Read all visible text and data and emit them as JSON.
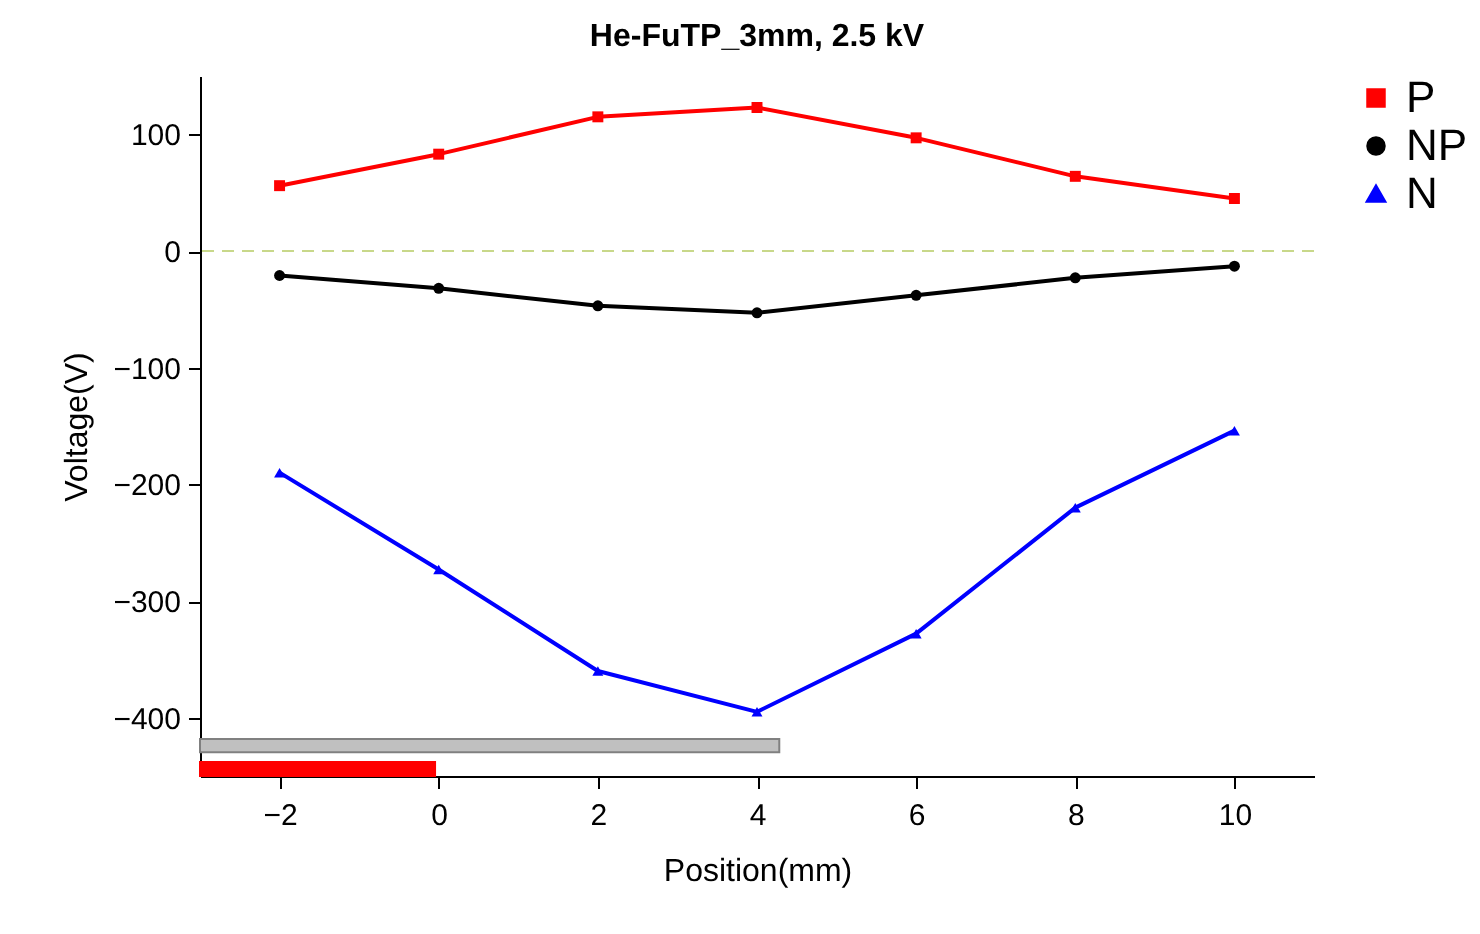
{
  "chart_data": {
    "type": "line",
    "title": "He-FuTP_3mm, 2.5 kV",
    "xlabel": "Position(mm)",
    "ylabel": "Voltage(V)",
    "x": [
      -2,
      0,
      2,
      4,
      6,
      8,
      10
    ],
    "series": [
      {
        "name": "P",
        "color": "#ff0000",
        "marker": "square",
        "values": [
          56,
          83,
          115,
          123,
          97,
          64,
          45
        ]
      },
      {
        "name": "NP",
        "color": "#000000",
        "marker": "circle",
        "values": [
          -21,
          -32,
          -47,
          -53,
          -38,
          -23,
          -13
        ]
      },
      {
        "name": "N",
        "color": "#0000ff",
        "marker": "triangle",
        "values": [
          -190,
          -273,
          -360,
          -395,
          -328,
          -220,
          -154
        ]
      }
    ],
    "xlim": [
      -3,
      11
    ],
    "xticks": [
      -2,
      0,
      2,
      4,
      6,
      8,
      10
    ],
    "ylim": [
      -450,
      150
    ],
    "yticks": [
      -400,
      -300,
      -200,
      -100,
      0,
      100
    ],
    "ref_lines": [
      {
        "axis": "y",
        "value": 0,
        "color": "#c8d88a",
        "line_style": "dashed"
      }
    ],
    "grid": false,
    "legend": "right",
    "line_style": "solid"
  }
}
